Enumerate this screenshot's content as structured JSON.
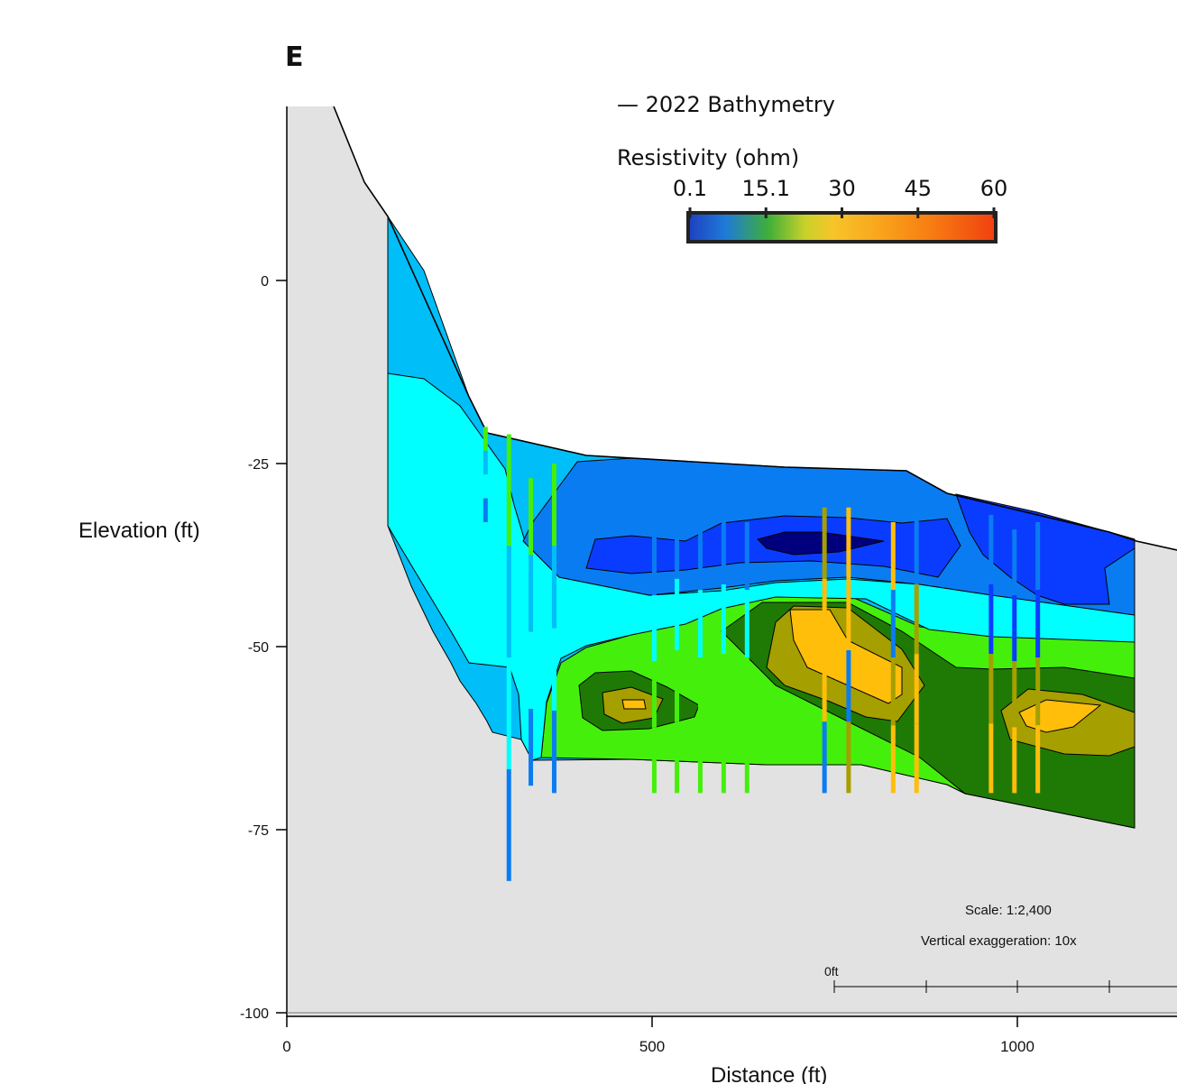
{
  "panel_label": "E",
  "legend": {
    "line_entry": "— 2022 Bathymetry",
    "colorbar_title": "Resistivity (ohm)",
    "colorbar_ticks": [
      "0.1",
      "15.1",
      "30",
      "45",
      "60"
    ],
    "colors": [
      "#1f3fbf",
      "#1e7ad8",
      "#3fae3a",
      "#c8d12a",
      "#f7c52a",
      "#f9a51c",
      "#f77a12",
      "#f04010"
    ]
  },
  "annotations": {
    "scale": "Scale: 1:2,400",
    "vertical_exaggeration": "Vertical exaggeration: 10x",
    "scalebar_zero": "0ft"
  },
  "chart_data": {
    "type": "area",
    "xlabel": "Distance (ft)",
    "ylabel": "Elevation (ft)",
    "xlim": [
      0,
      1220
    ],
    "ylim": [
      -100,
      24
    ],
    "x_ticks": [
      0,
      500,
      1000
    ],
    "x_tick_labels": [
      "0",
      "500",
      "1000"
    ],
    "y_ticks": [
      0,
      -25,
      -50,
      -75,
      -100
    ],
    "y_tick_labels": [
      "0",
      "-25",
      "-50",
      "-75",
      "-100"
    ],
    "colorbar_range": [
      0.1,
      60
    ],
    "palette": {
      "darkest_blue": "#00007e",
      "blue": "#0a3cff",
      "mid_blue": "#0a7cf2",
      "light_blue": "#00bef7",
      "cyan": "#00ffff",
      "bright_green": "#44f00b",
      "dark_green": "#1f7a05",
      "olive": "#a59f00",
      "gold": "#ffbe0a",
      "ground": "#e2e2e2"
    },
    "bathymetry_profile": [
      [
        66,
        24
      ],
      [
        108,
        10
      ],
      [
        138,
        4
      ],
      [
        250,
        -20
      ],
      [
        300,
        -24
      ],
      [
        366,
        -25
      ],
      [
        416,
        -24
      ],
      [
        626,
        -25
      ],
      [
        876,
        -26
      ],
      [
        920,
        -29
      ],
      [
        1050,
        -34
      ],
      [
        1160,
        -37
      ],
      [
        1220,
        -37
      ]
    ],
    "section_bottom": [
      [
        138,
        -33
      ],
      [
        230,
        -62
      ],
      [
        336,
        -66
      ],
      [
        520,
        -67
      ],
      [
        850,
        -67
      ],
      [
        955,
        -71
      ],
      [
        1160,
        -75
      ]
    ],
    "boreholes": [
      {
        "x": 272,
        "top": -20,
        "bottom": -33
      },
      {
        "x": 304,
        "top": -21,
        "bottom": -82
      },
      {
        "x": 334,
        "top": -27,
        "bottom": -69
      },
      {
        "x": 366,
        "top": -25,
        "bottom": -70
      },
      {
        "x": 503,
        "top": -34,
        "bottom": -70
      },
      {
        "x": 534,
        "top": -31,
        "bottom": -70
      },
      {
        "x": 566,
        "top": -33,
        "bottom": -70
      },
      {
        "x": 598,
        "top": -32,
        "bottom": -70
      },
      {
        "x": 630,
        "top": -33,
        "bottom": -70
      },
      {
        "x": 736,
        "top": -31,
        "bottom": -70
      },
      {
        "x": 769,
        "top": -31,
        "bottom": -70
      },
      {
        "x": 830,
        "top": -33,
        "bottom": -70
      },
      {
        "x": 862,
        "top": -32,
        "bottom": -70
      },
      {
        "x": 964,
        "top": -32,
        "bottom": -70
      },
      {
        "x": 996,
        "top": -34,
        "bottom": -70
      },
      {
        "x": 1028,
        "top": -33,
        "bottom": -70
      }
    ]
  }
}
